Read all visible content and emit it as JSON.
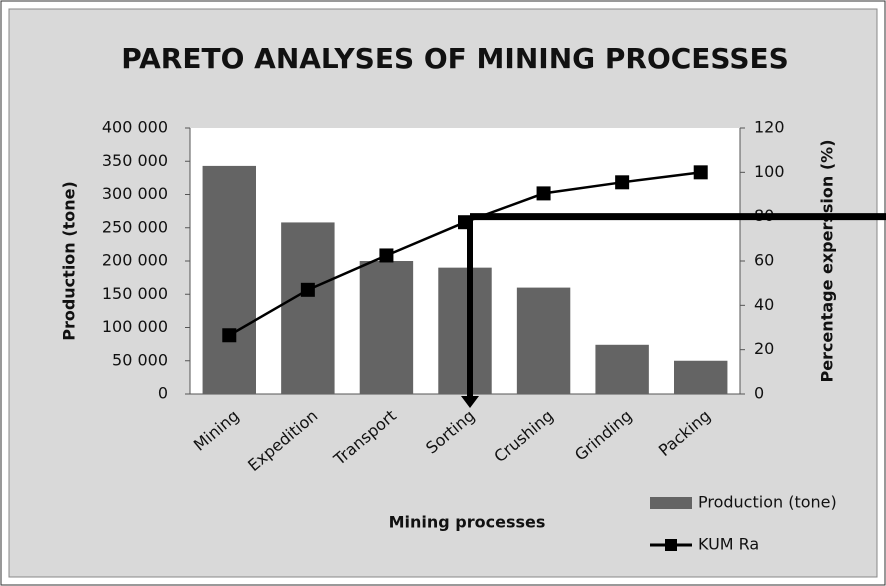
{
  "chart_data": {
    "type": "pareto",
    "title": "PARETO ANALYSES OF MINING PROCESSES",
    "x_label": "Mining processes",
    "y_label": "Production (tone)",
    "y2_label": "Percentage experssion (%)",
    "categories": [
      "Mining",
      "Expedition",
      "Transport",
      "Sorting",
      "Crushing",
      "Grinding",
      "Packing"
    ],
    "series": [
      {
        "name": "Production (tone)",
        "type": "bar",
        "color": "#646464",
        "values": [
          343000,
          258000,
          200000,
          190000,
          160000,
          74000,
          50000
        ]
      },
      {
        "name": "KUM Ra",
        "type": "line",
        "color": "#000000",
        "axis": "y2",
        "values": [
          26.5,
          47,
          62.5,
          77.5,
          90.5,
          95.5,
          100
        ]
      }
    ],
    "ylim": [
      0,
      400000
    ],
    "yticks": [
      {
        "value": 0,
        "label": "0"
      },
      {
        "value": 50000,
        "label": "50 000"
      },
      {
        "value": 100000,
        "label": "100 000"
      },
      {
        "value": 150000,
        "label": "150 000"
      },
      {
        "value": 200000,
        "label": "200 000"
      },
      {
        "value": 250000,
        "label": "250 000"
      },
      {
        "value": 300000,
        "label": "300 000"
      },
      {
        "value": 350000,
        "label": "350 000"
      },
      {
        "value": 400000,
        "label": "400 000"
      }
    ],
    "y2lim": [
      0,
      120
    ],
    "y2ticks": [
      0,
      20,
      40,
      60,
      80,
      100,
      120
    ],
    "reference_y2": 80,
    "reference_category": "Sorting",
    "legend": "bottom-right"
  }
}
